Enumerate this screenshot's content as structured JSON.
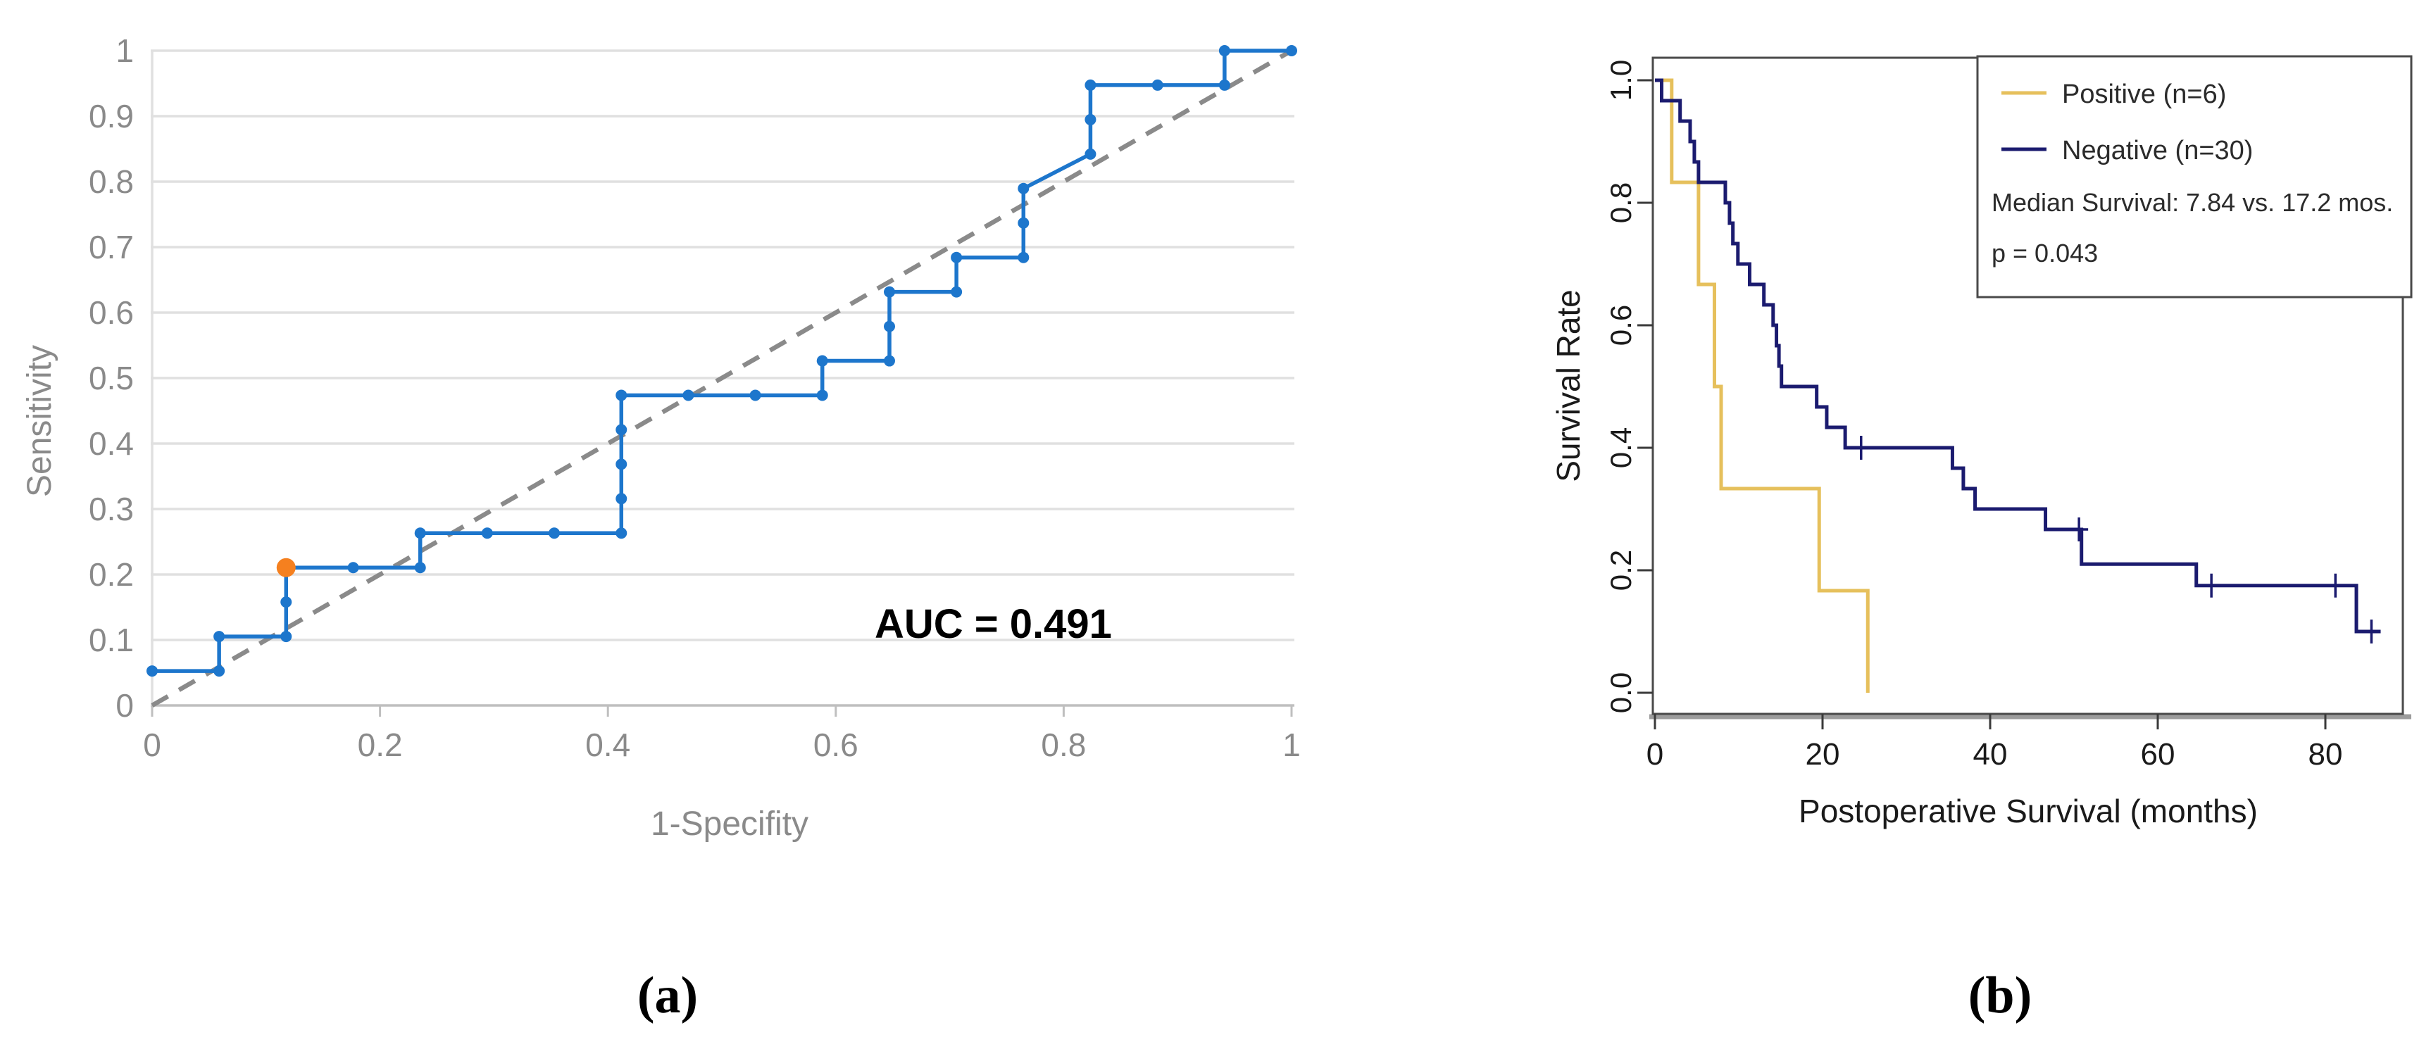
{
  "figure": {
    "background": "#ffffff",
    "panels": [
      {
        "caption": "(a)"
      },
      {
        "caption": "(b)"
      }
    ]
  },
  "chart_data": [
    {
      "id": "roc",
      "type": "line",
      "subtype": "roc-step-curve-with-markers",
      "title": "",
      "xlabel": "1-Specifity",
      "ylabel": "Sensitivity",
      "xlim": [
        0,
        1
      ],
      "ylim": [
        0,
        1
      ],
      "grid": "horizontal-only",
      "x_tick_values": [
        0,
        0.2,
        0.4,
        0.6,
        0.8,
        1
      ],
      "x_tick_labels": [
        "0",
        "0.2",
        "0.4",
        "0.6",
        "0.8",
        "1"
      ],
      "y_tick_values": [
        0,
        0.1,
        0.2,
        0.3,
        0.4,
        0.5,
        0.6,
        0.7,
        0.8,
        0.9,
        1
      ],
      "y_tick_labels": [
        "0",
        "0.1",
        "0.2",
        "0.3",
        "0.4",
        "0.5",
        "0.6",
        "0.7",
        "0.8",
        "0.9",
        "1"
      ],
      "annotation": "AUC = 0.491",
      "auc": 0.491,
      "diagonal_reference_line": [
        [
          0,
          0
        ],
        [
          1,
          1
        ]
      ],
      "curve_points": [
        [
          0.0,
          0.0526
        ],
        [
          0.0588,
          0.0526
        ],
        [
          0.0588,
          0.1053
        ],
        [
          0.1176,
          0.1053
        ],
        [
          0.1176,
          0.1579
        ],
        [
          0.1176,
          0.2105
        ],
        [
          0.1765,
          0.2105
        ],
        [
          0.2353,
          0.2105
        ],
        [
          0.2353,
          0.2632
        ],
        [
          0.2941,
          0.2632
        ],
        [
          0.3529,
          0.2632
        ],
        [
          0.4118,
          0.2632
        ],
        [
          0.4118,
          0.3158
        ],
        [
          0.4118,
          0.3684
        ],
        [
          0.4118,
          0.4211
        ],
        [
          0.4118,
          0.4737
        ],
        [
          0.4706,
          0.4737
        ],
        [
          0.5294,
          0.4737
        ],
        [
          0.5882,
          0.4737
        ],
        [
          0.5882,
          0.5263
        ],
        [
          0.6471,
          0.5263
        ],
        [
          0.6471,
          0.5789
        ],
        [
          0.6471,
          0.6316
        ],
        [
          0.7059,
          0.6316
        ],
        [
          0.7059,
          0.6842
        ],
        [
          0.7647,
          0.6842
        ],
        [
          0.7647,
          0.7368
        ],
        [
          0.7647,
          0.7895
        ],
        [
          0.8235,
          0.8421
        ],
        [
          0.8235,
          0.8947
        ],
        [
          0.8235,
          0.9474
        ],
        [
          0.8824,
          0.9474
        ],
        [
          0.9412,
          0.9474
        ],
        [
          0.9412,
          1.0
        ],
        [
          1.0,
          1.0
        ]
      ],
      "highlight_point": [
        0.1176,
        0.2105
      ],
      "colors": {
        "curve": "#1d76cc",
        "highlight": "#f5801f",
        "diagonal": "#8a8a8a",
        "grid": "#e0e0e0",
        "axis_line": "#bfbfbf",
        "axis_text": "#8a8a8a",
        "annotation_text": "#000000"
      }
    },
    {
      "id": "km",
      "type": "line",
      "subtype": "kaplan-meier",
      "title": "",
      "xlabel": "Postoperative Survival (months)",
      "ylabel": "Survival Rate",
      "xlim": [
        0,
        89
      ],
      "ylim": [
        0,
        1
      ],
      "x_tick_values": [
        0,
        20,
        40,
        60,
        80
      ],
      "x_tick_labels": [
        "0",
        "20",
        "40",
        "60",
        "80"
      ],
      "y_tick_values": [
        0,
        0.2,
        0.4,
        0.6,
        0.8,
        1
      ],
      "y_tick_labels": [
        "0.0",
        "0.2",
        "0.4",
        "0.6",
        "0.8",
        "1.0"
      ],
      "median_survival_months": {
        "positive": 7.84,
        "negative": 17.2
      },
      "p_value": 0.043,
      "series": [
        {
          "name": "Positive (n=6)",
          "color": "#e6c05c",
          "start": [
            0,
            1.0
          ],
          "events": [
            [
              2.0,
              0.8333
            ],
            [
              5.2,
              0.6667
            ],
            [
              7.1,
              0.5
            ],
            [
              7.9,
              0.3333
            ],
            [
              19.6,
              0.1667
            ],
            [
              25.4,
              0.0
            ]
          ],
          "end_time": 25.4,
          "censor_marks": []
        },
        {
          "name": "Negative (n=30)",
          "color": "#1b1b6f",
          "start": [
            0,
            1.0
          ],
          "events": [
            [
              0.8,
              0.9667
            ],
            [
              3.0,
              0.9333
            ],
            [
              4.2,
              0.9
            ],
            [
              4.7,
              0.8667
            ],
            [
              5.2,
              0.8333
            ],
            [
              8.4,
              0.8
            ],
            [
              8.9,
              0.7667
            ],
            [
              9.3,
              0.7333
            ],
            [
              9.9,
              0.7
            ],
            [
              11.3,
              0.6667
            ],
            [
              13.0,
              0.6333
            ],
            [
              14.1,
              0.6
            ],
            [
              14.5,
              0.5667
            ],
            [
              14.8,
              0.5333
            ],
            [
              15.1,
              0.5
            ],
            [
              19.3,
              0.4667
            ],
            [
              20.5,
              0.4333
            ],
            [
              22.7,
              0.4
            ],
            [
              35.5,
              0.3667
            ],
            [
              36.8,
              0.3333
            ],
            [
              38.2,
              0.3
            ],
            [
              46.6,
              0.2667
            ],
            [
              50.9,
              0.21
            ],
            [
              64.6,
              0.175
            ],
            [
              83.7,
              0.1
            ]
          ],
          "end_time": 86.6,
          "censor_marks": [
            [
              24.6,
              0.4
            ],
            [
              50.6,
              0.2667
            ],
            [
              66.4,
              0.175
            ],
            [
              81.2,
              0.175
            ],
            [
              85.5,
              0.1
            ]
          ]
        }
      ],
      "legend": {
        "position": "top-right",
        "items": [
          "Positive (n=6)",
          "Negative (n=30)"
        ],
        "stats_lines": [
          "Median Survival: 7.84 vs. 17.2 mos.",
          "p = 0.043"
        ]
      },
      "colors": {
        "box": "#4a4a4a",
        "axis_shadow": "#9c9c9c",
        "tick": "#3a3a3a",
        "axis_text": "#1a1a1a",
        "legend_text": "#2b2b2b"
      }
    }
  ]
}
